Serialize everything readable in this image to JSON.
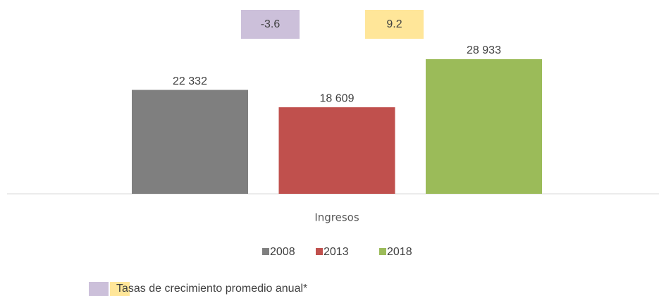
{
  "chart_data": {
    "type": "bar",
    "categories": [
      "Ingresos"
    ],
    "series": [
      {
        "name": "2008",
        "color": "#7f7f7f",
        "values": [
          22332
        ],
        "value_labels": [
          "22 332"
        ]
      },
      {
        "name": "2013",
        "color": "#c0504d",
        "values": [
          18609
        ],
        "value_labels": [
          "18 609"
        ]
      },
      {
        "name": "2018",
        "color": "#9bbb59",
        "values": [
          28933
        ],
        "value_labels": [
          "28 933"
        ]
      }
    ],
    "growth_rates": {
      "label": "Tasas de crecimiento promedio anual*",
      "values": [
        -3.6,
        9.2
      ],
      "colors": [
        "#ccc0da",
        "#ffe699"
      ]
    },
    "legend": "bottom"
  }
}
